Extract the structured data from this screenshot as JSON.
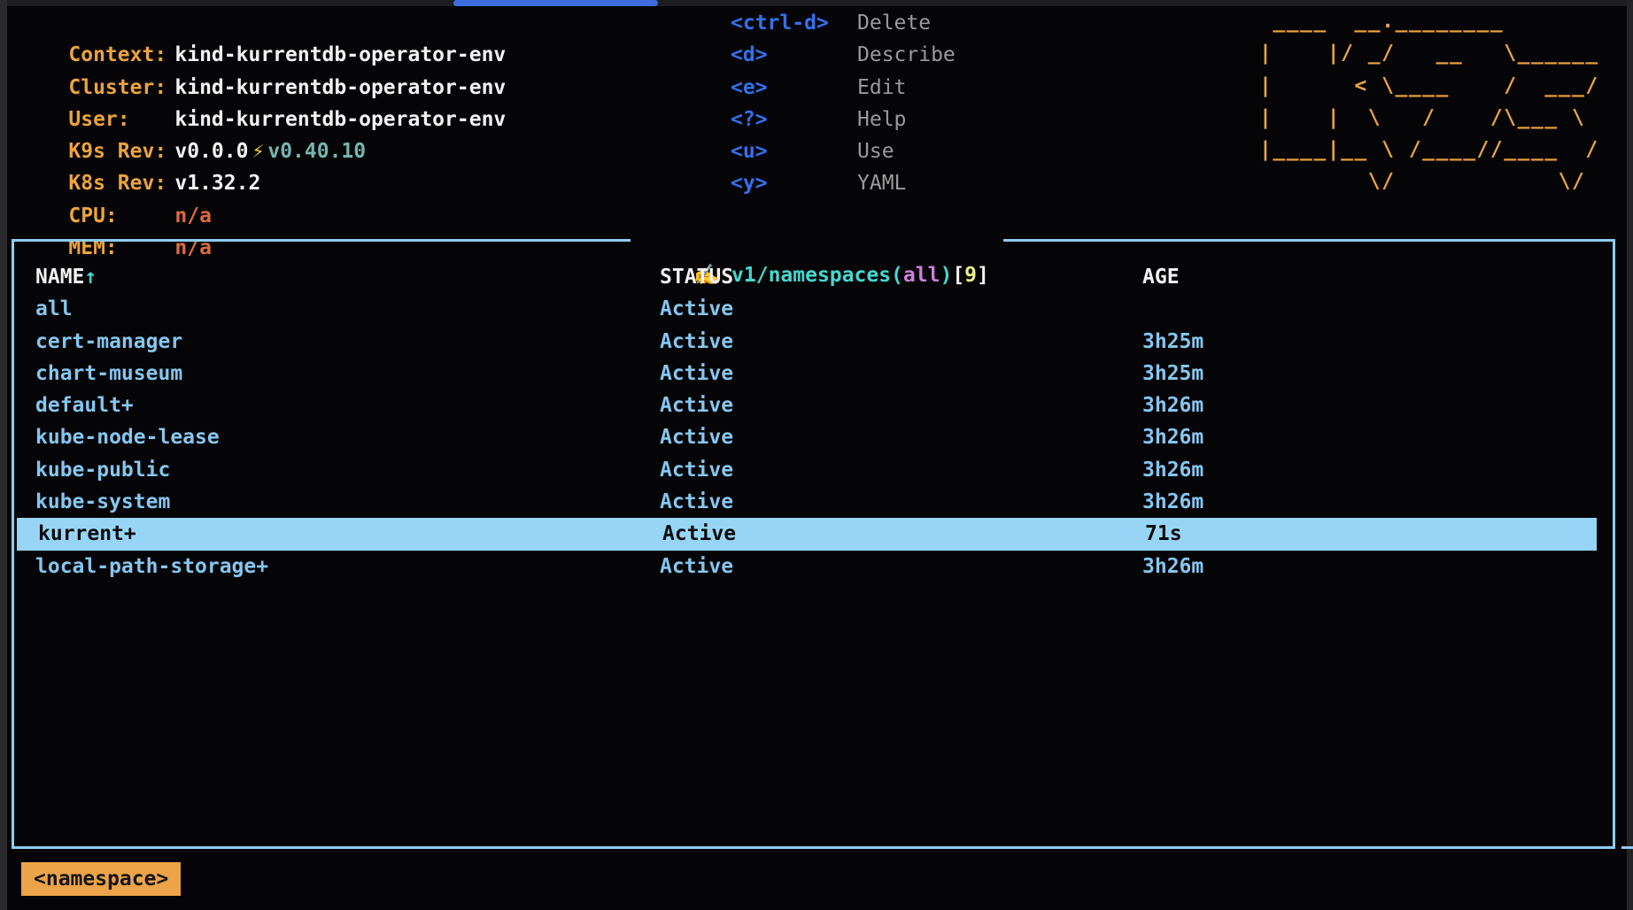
{
  "window": {
    "tab_bar_color": "#3d6be0"
  },
  "cluster_info": {
    "rows": [
      {
        "label": "Context:",
        "value": "kind-kurrentdb-operator-env"
      },
      {
        "label": "Cluster:",
        "value": "kind-kurrentdb-operator-env"
      },
      {
        "label": "User:",
        "value": "kind-kurrentdb-operator-env"
      },
      {
        "label": "K9s Rev:",
        "value": "v0.0.0",
        "bolt_icon": "⚡",
        "latest": "v0.40.10"
      },
      {
        "label": "K8s Rev:",
        "value": "v1.32.2"
      },
      {
        "label": "CPU:",
        "value": "n/a"
      },
      {
        "label": "MEM:",
        "value": "n/a"
      }
    ]
  },
  "shortcuts": [
    {
      "key": "<ctrl-d>",
      "action": "Delete"
    },
    {
      "key": "<d>",
      "action": "Describe"
    },
    {
      "key": "<e>",
      "action": "Edit"
    },
    {
      "key": "<?>",
      "action": "Help"
    },
    {
      "key": "<u>",
      "action": "Use"
    },
    {
      "key": "<y>",
      "action": "YAML"
    }
  ],
  "logo_ascii": " ____  __.________\n|    |/ _/   __   \\______\n|      < \\____    /  ___/\n|    |  \\   /    /\\___ \\\n|____|__ \\ /____//____  /\n        \\/            \\/",
  "view": {
    "icon": "✍️",
    "title_prefix": "v1/namespaces(",
    "scope": "all",
    "close_paren": ")",
    "bracket_open": "[",
    "count": "9",
    "bracket_close": "]"
  },
  "table": {
    "sort_icon": "↑",
    "columns": {
      "name": "NAME",
      "status": "STATUS",
      "age": "AGE"
    },
    "rows": [
      {
        "name": "all",
        "status": "Active",
        "age": ""
      },
      {
        "name": "cert-manager",
        "status": "Active",
        "age": "3h25m"
      },
      {
        "name": "chart-museum",
        "status": "Active",
        "age": "3h25m"
      },
      {
        "name": "default+",
        "status": "Active",
        "age": "3h26m"
      },
      {
        "name": "kube-node-lease",
        "status": "Active",
        "age": "3h26m"
      },
      {
        "name": "kube-public",
        "status": "Active",
        "age": "3h26m"
      },
      {
        "name": "kube-system",
        "status": "Active",
        "age": "3h26m"
      },
      {
        "name": "kurrent+",
        "status": "Active",
        "age": "71s",
        "selected": true
      },
      {
        "name": "local-path-storage+",
        "status": "Active",
        "age": "3h26m"
      }
    ]
  },
  "footer": {
    "crumb": "<namespace>"
  },
  "colors": {
    "accent_orange": "#eda33d",
    "na_orange_red": "#dd6a3c",
    "key_blue": "#3470ee",
    "title_teal": "#45d8d0",
    "scope_orchid": "#cf7fdd",
    "count_yellow": "#edf28a",
    "row_skyblue": "#85c6ef",
    "border_skyblue": "#8fccf1",
    "selection_bg": "#97d5f6",
    "tab_blue": "#3d6be0"
  }
}
